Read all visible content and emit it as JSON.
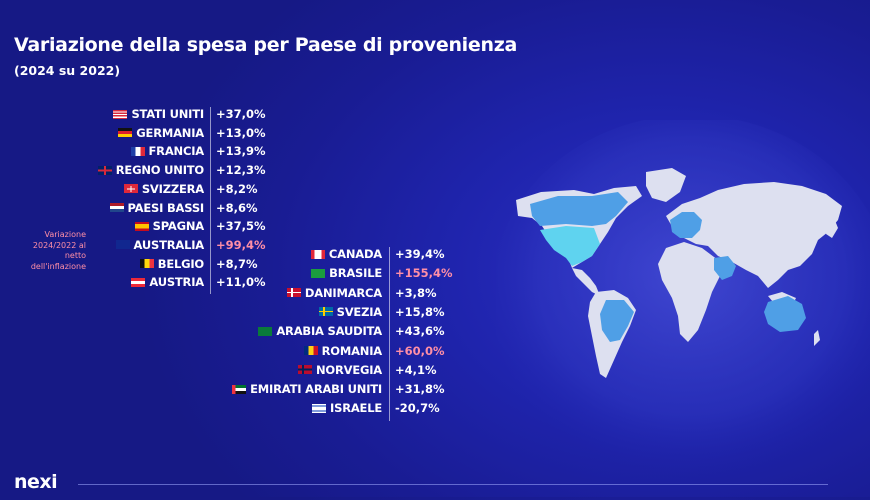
{
  "header": {
    "title": "Variazione della spesa per Paese di provenienza",
    "subtitle": "(2024 su 2022)"
  },
  "note": "Variazione 2024/2022 al netto dell'inflazione",
  "logo": "nexi",
  "colors": {
    "background": "#191c93",
    "text": "#ffffff",
    "highlight": "#ff8fa6",
    "map_land": "#dde0f0",
    "map_highlight": "#4f9fe6",
    "map_highlight_strong": "#5fd3ef"
  },
  "chart_data": {
    "type": "table",
    "unit": "%",
    "columns": [
      {
        "rows": [
          {
            "country": "STATI UNITI",
            "flag": "us",
            "value": "+37,0%",
            "highlight": false
          },
          {
            "country": "GERMANIA",
            "flag": "de",
            "value": "+13,0%",
            "highlight": false
          },
          {
            "country": "FRANCIA",
            "flag": "fr",
            "value": "+13,9%",
            "highlight": false
          },
          {
            "country": "REGNO UNITO",
            "flag": "gb",
            "value": "+12,3%",
            "highlight": false
          },
          {
            "country": "SVIZZERA",
            "flag": "ch",
            "value": "+8,2%",
            "highlight": false
          },
          {
            "country": "PAESI BASSI",
            "flag": "nl",
            "value": "+8,6%",
            "highlight": false
          },
          {
            "country": "SPAGNA",
            "flag": "es",
            "value": "+37,5%",
            "highlight": false
          },
          {
            "country": "AUSTRALIA",
            "flag": "au",
            "value": "+99,4%",
            "highlight": true
          },
          {
            "country": "BELGIO",
            "flag": "be",
            "value": "+8,7%",
            "highlight": false
          },
          {
            "country": "AUSTRIA",
            "flag": "at",
            "value": "+11,0%",
            "highlight": false
          }
        ]
      },
      {
        "rows": [
          {
            "country": "CANADA",
            "flag": "ca",
            "value": "+39,4%",
            "highlight": false
          },
          {
            "country": "BRASILE",
            "flag": "br",
            "value": "+155,4%",
            "highlight": true
          },
          {
            "country": "DANIMARCA",
            "flag": "dk",
            "value": "+3,8%",
            "highlight": false
          },
          {
            "country": "SVEZIA",
            "flag": "se",
            "value": "+15,8%",
            "highlight": false
          },
          {
            "country": "ARABIA SAUDITA",
            "flag": "sa",
            "value": "+43,6%",
            "highlight": false
          },
          {
            "country": "ROMANIA",
            "flag": "ro",
            "value": "+60,0%",
            "highlight": true
          },
          {
            "country": "NORVEGIA",
            "flag": "no",
            "value": "+4,1%",
            "highlight": false
          },
          {
            "country": "EMIRATI ARABI UNITI",
            "flag": "ae",
            "value": "+31,8%",
            "highlight": false
          },
          {
            "country": "ISRAELE",
            "flag": "il",
            "value": "-20,7%",
            "highlight": false
          }
        ]
      }
    ]
  }
}
